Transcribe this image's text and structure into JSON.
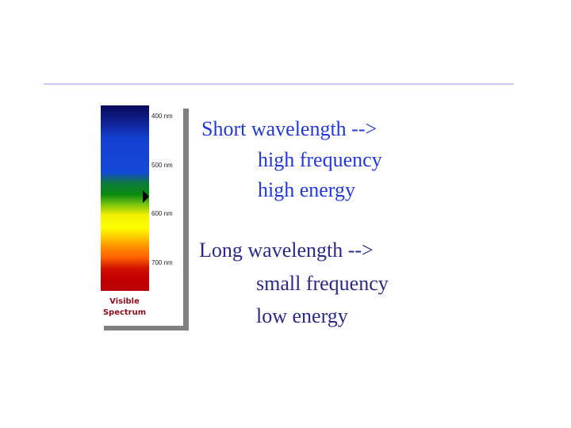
{
  "figure": {
    "labels": [
      "400 nm",
      "500 nm",
      "600 nm",
      "700 nm"
    ],
    "caption_line1": "Visible",
    "caption_line2": "Spectrum"
  },
  "short": {
    "heading": "Short wavelength -->",
    "line1": "high frequency",
    "line2": "high energy",
    "color": "#2238d8"
  },
  "long": {
    "heading": "Long wavelength -->",
    "line1": "small frequency",
    "line2": "low energy",
    "color": "#2a2a86"
  }
}
